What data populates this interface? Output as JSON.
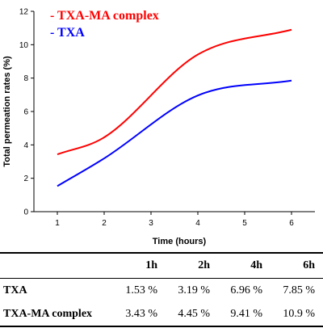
{
  "chart_data": {
    "type": "line",
    "xlabel": "Time (hours)",
    "ylabel": "Total permeation rates (%)",
    "xlim": [
      0.5,
      6.5
    ],
    "ylim": [
      0,
      12
    ],
    "x_ticks": [
      1,
      2,
      3,
      4,
      5,
      6
    ],
    "y_ticks": [
      0,
      2,
      4,
      6,
      8,
      10,
      12
    ],
    "grid": false,
    "legend_position": "top-left",
    "x": [
      1,
      2,
      4,
      6
    ],
    "series": [
      {
        "name": "- TXA-MA complex",
        "color": "#ff0000",
        "values": [
          3.43,
          4.45,
          9.41,
          10.9
        ]
      },
      {
        "name": "- TXA",
        "color": "#0000ff",
        "values": [
          1.53,
          3.19,
          6.96,
          7.85
        ]
      }
    ]
  },
  "table": {
    "headers": [
      "1h",
      "2h",
      "4h",
      "6h"
    ],
    "rows": [
      {
        "label": "TXA",
        "values": [
          "1.53 %",
          "3.19 %",
          "6.96 %",
          "7.85 %"
        ]
      },
      {
        "label": "TXA-MA complex",
        "values": [
          "3.43 %",
          "4.45 %",
          "9.41 %",
          "10.9 %"
        ]
      }
    ]
  }
}
